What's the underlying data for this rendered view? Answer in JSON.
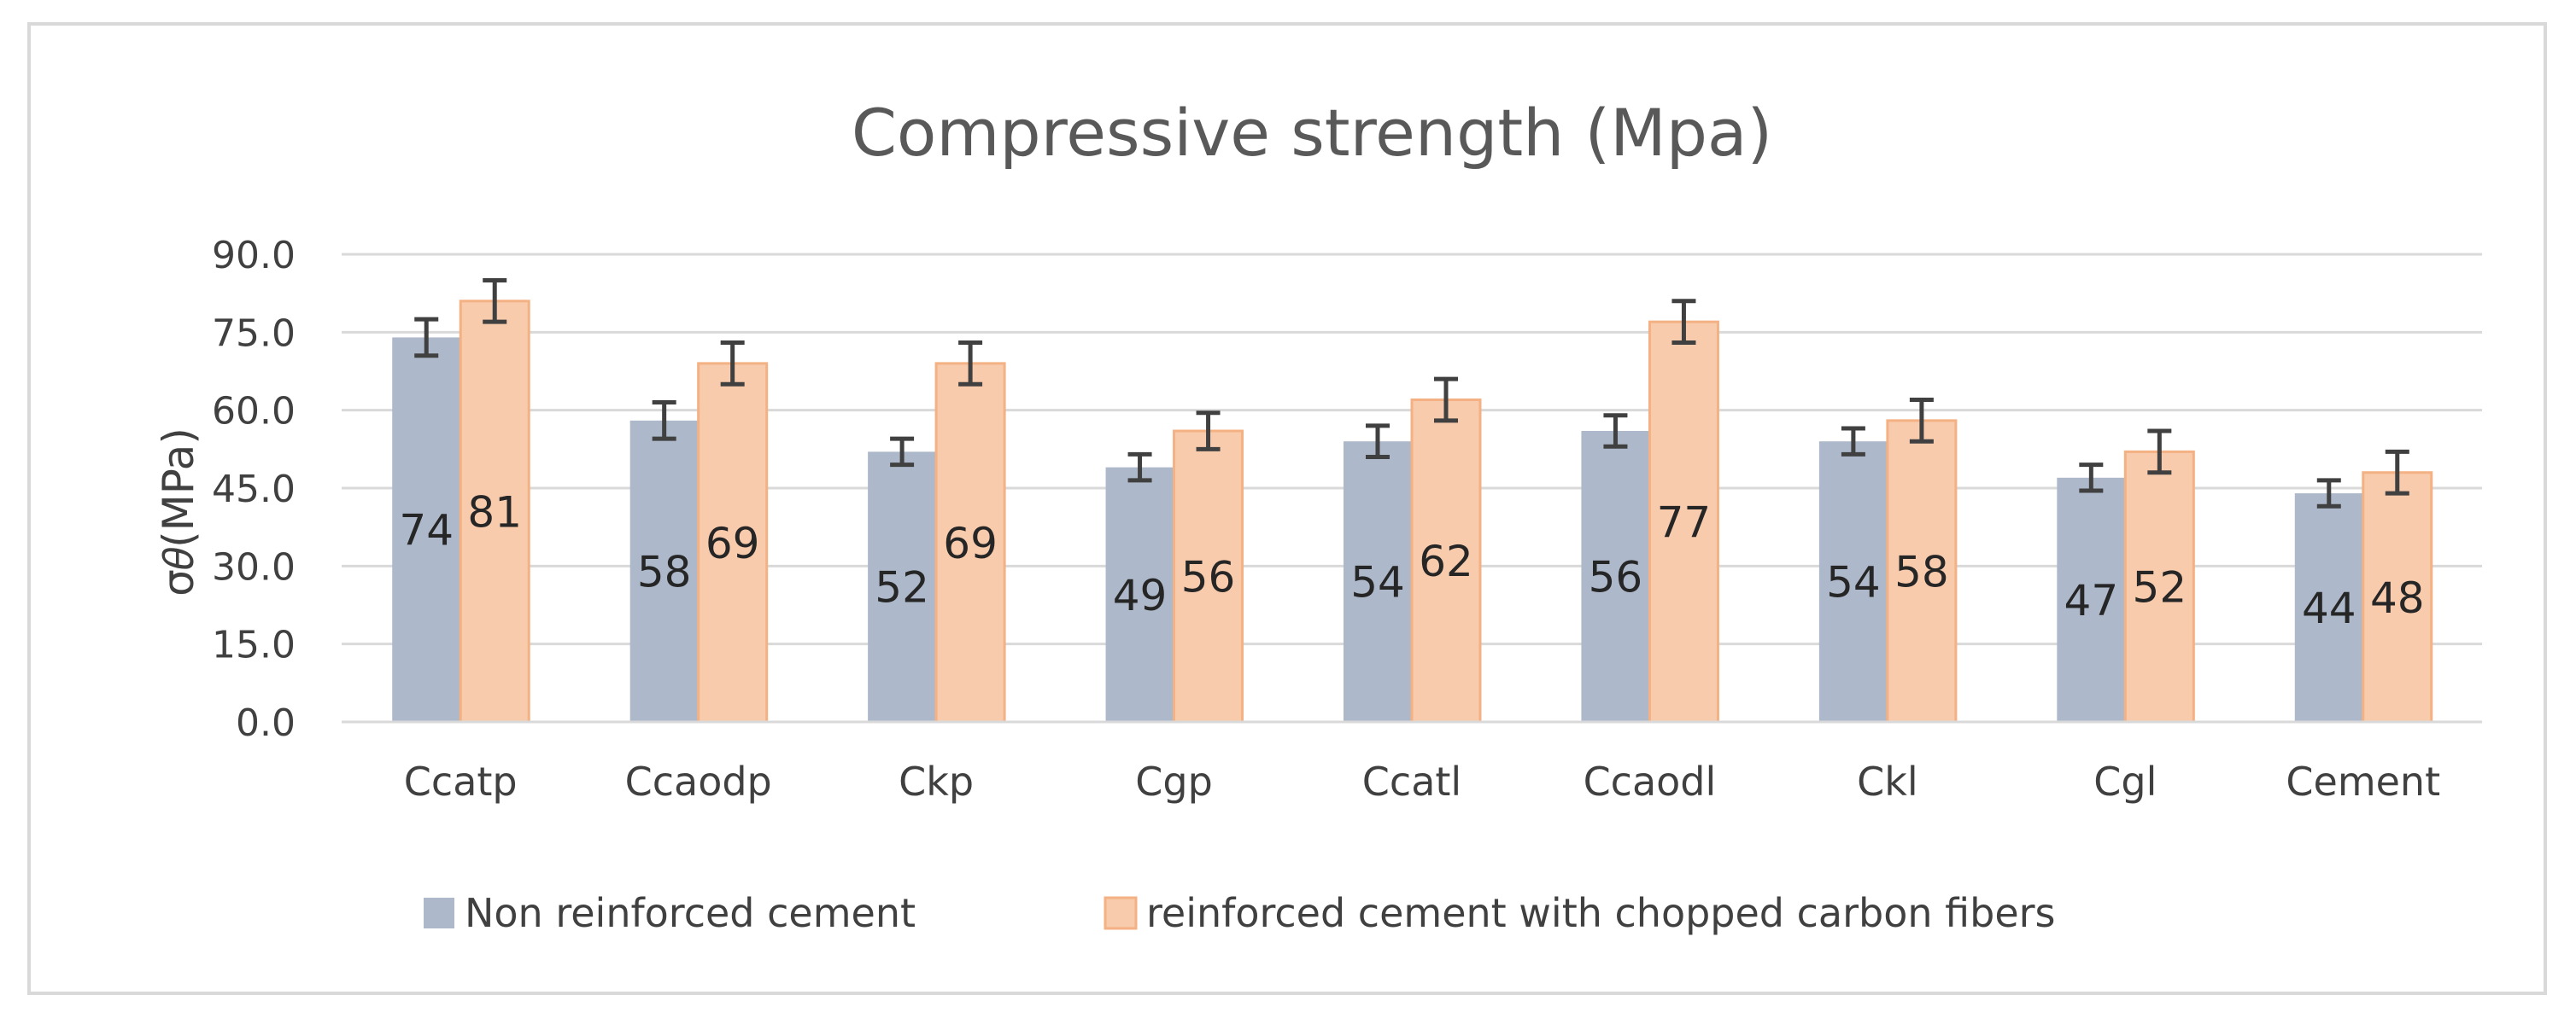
{
  "chart_data": {
    "type": "bar",
    "title": "Compressive strength (Mpa)",
    "xlabel": "",
    "ylabel": "σ𝜃(MPa)",
    "ylim": [
      0,
      90
    ],
    "yticks": [
      0,
      15,
      30,
      45,
      60,
      75,
      90
    ],
    "ytick_labels": [
      "0.0",
      "15.0",
      "30.0",
      "45.0",
      "60.0",
      "75.0",
      "90.0"
    ],
    "grid": true,
    "legend_position": "bottom",
    "categories": [
      "Ccatp",
      "Ccaodp",
      "Ckp",
      "Cgp",
      "Ccatl",
      "Ccaodl",
      "Ckl",
      "Cgl",
      "Cement"
    ],
    "series": [
      {
        "name": "Non reinforced cement",
        "color": "#adb9ca",
        "values": [
          74,
          58,
          52,
          49,
          54,
          56,
          54,
          47,
          44
        ],
        "labels": [
          "74",
          "58",
          "52",
          "49",
          "54",
          "56",
          "54",
          "47",
          "44"
        ],
        "errors": [
          3.5,
          3.5,
          2.5,
          2.5,
          3,
          3,
          2.5,
          2.5,
          2.5
        ]
      },
      {
        "name": "reinforced cement with chopped carbon fibers",
        "color": "#f8cbad",
        "edge_color": "#f4b183",
        "values": [
          81,
          69,
          69,
          56,
          62,
          77,
          58,
          52,
          48
        ],
        "labels": [
          "81",
          "69",
          "69",
          "56",
          "62",
          "77",
          "58",
          "52",
          "48"
        ],
        "errors": [
          4,
          4,
          4,
          3.5,
          4,
          4,
          4,
          4,
          4
        ]
      }
    ]
  }
}
